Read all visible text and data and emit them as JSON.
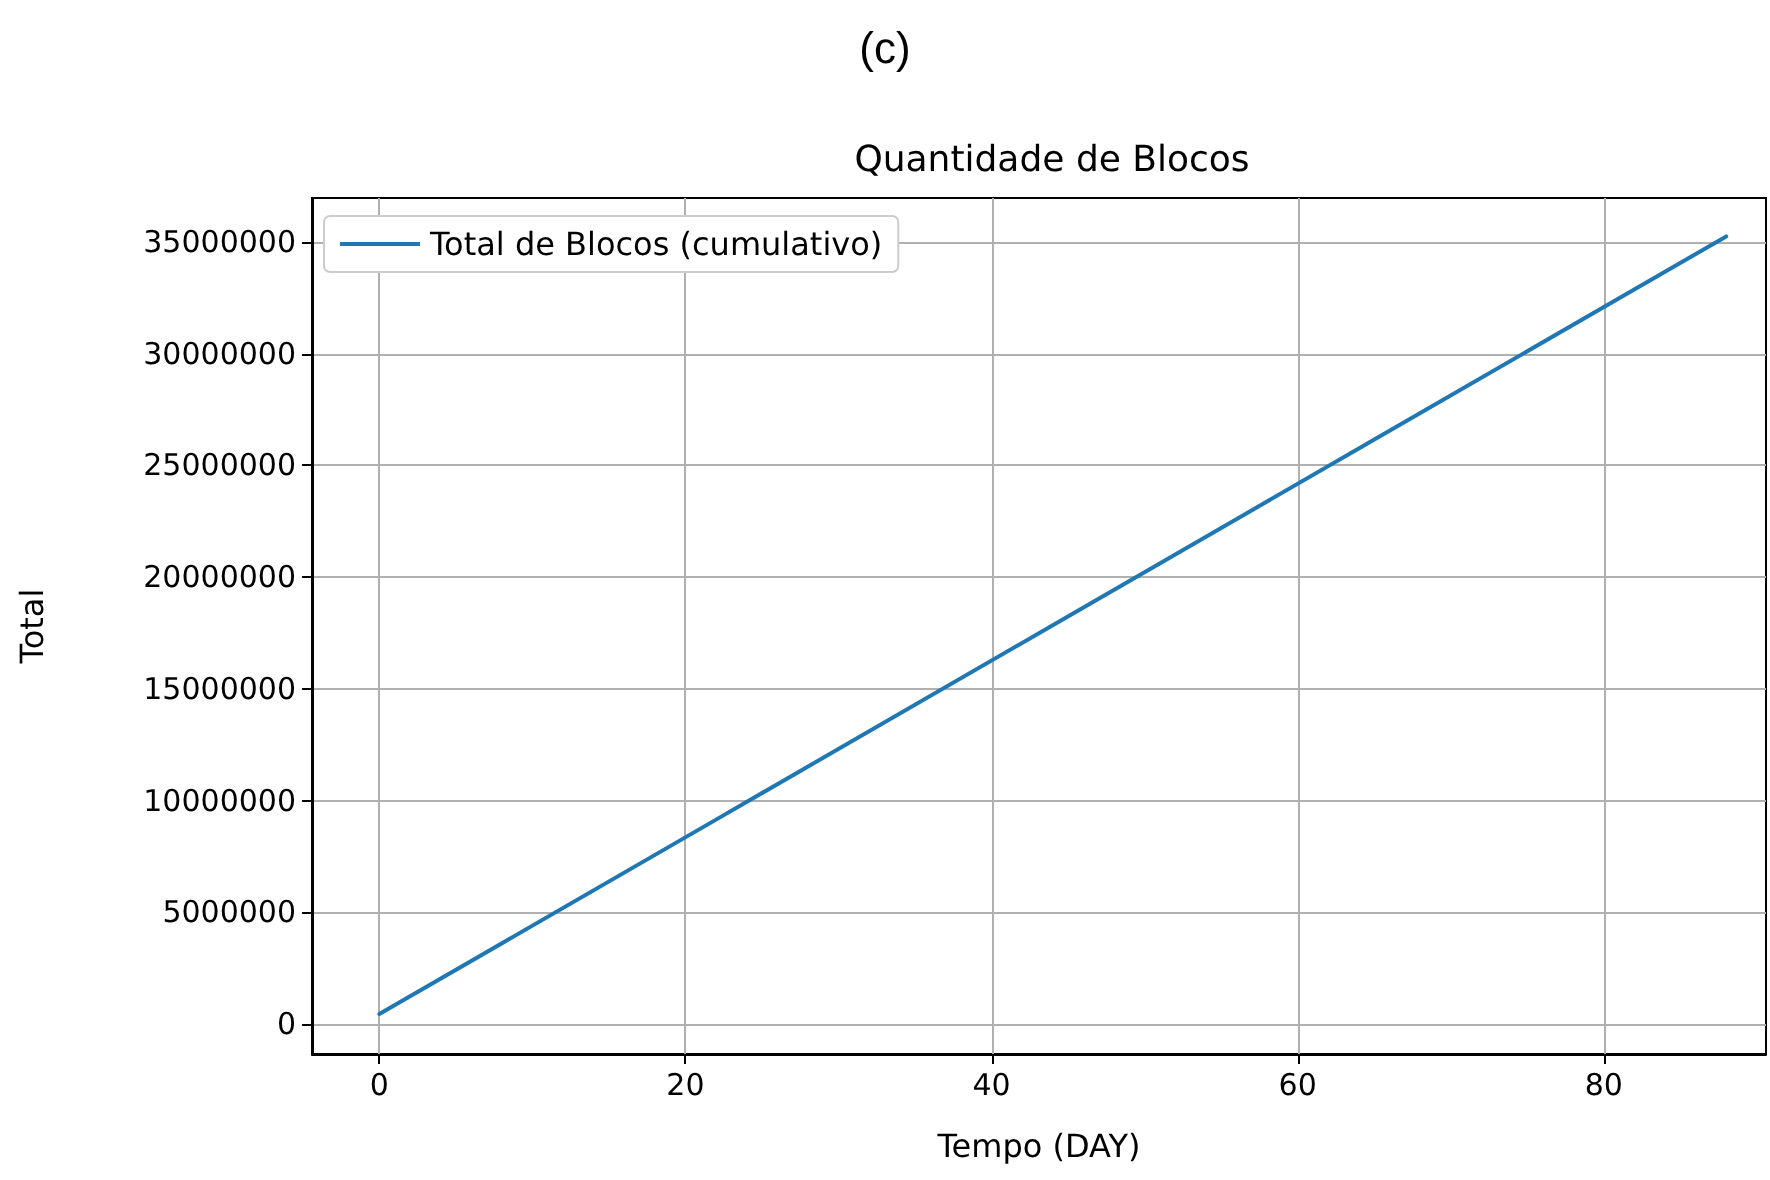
{
  "chart_data": {
    "type": "line",
    "title": "(c)",
    "subtitle": "Quantidade de Blocos",
    "xlabel": "Tempo (DAY)",
    "ylabel": "Total",
    "x": [
      0,
      22,
      44,
      66,
      88
    ],
    "series": [
      {
        "name": "Total de Blocos (cumulativo)",
        "color": "#1f77b4",
        "values": [
          450000,
          9150000,
          17850000,
          26550000,
          35250000
        ]
      }
    ],
    "xlim": [
      -4.4,
      90.6
    ],
    "xticks": [
      0,
      20,
      40,
      60,
      80
    ],
    "ylim": [
      -1340000,
      36970000
    ],
    "yticks": [
      0,
      5000000,
      10000000,
      15000000,
      20000000,
      25000000,
      30000000,
      35000000
    ],
    "grid": true,
    "legend": "top left",
    "marker": "none",
    "line_style": "solid"
  }
}
